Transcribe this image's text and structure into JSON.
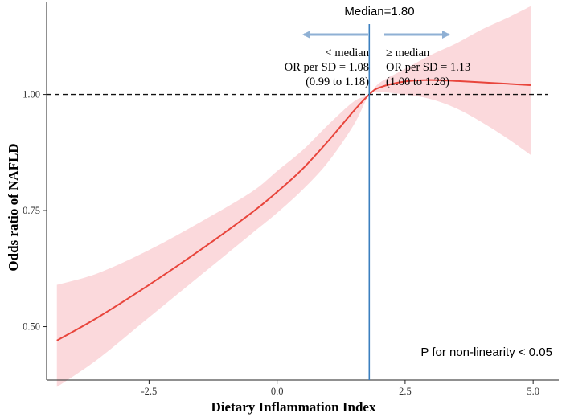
{
  "chart_data": {
    "type": "line",
    "title": "",
    "xlabel": "Dietary Inflammation Index",
    "ylabel": "Odds ratio of  NAFLD",
    "xlim": [
      -4.5,
      5.5
    ],
    "ylim": [
      0.385,
      1.2
    ],
    "x_ticks": [
      -2.5,
      0.0,
      2.5,
      5.0
    ],
    "x_tick_labels": [
      "-2.5",
      "0.0",
      "2.5",
      "5.0"
    ],
    "y_ticks": [
      0.5,
      0.75,
      1.0
    ],
    "y_tick_labels": [
      "0.50",
      "0.75",
      "1.00"
    ],
    "grid": false,
    "reference_line": {
      "y": 1.0,
      "style": "dashed"
    },
    "median_line": {
      "x": 1.8,
      "label": "Median=1.80"
    },
    "series": [
      {
        "name": "Odds ratio",
        "color": "#e8453c",
        "x": [
          -4.3,
          -3.5,
          -2.5,
          -1.5,
          -0.5,
          0.0,
          0.5,
          1.0,
          1.5,
          1.8,
          2.0,
          2.5,
          3.0,
          3.5,
          4.0,
          4.5,
          4.95
        ],
        "values": [
          0.47,
          0.52,
          0.59,
          0.665,
          0.745,
          0.79,
          0.84,
          0.9,
          0.965,
          1.0,
          1.015,
          1.028,
          1.031,
          1.029,
          1.026,
          1.023,
          1.02
        ]
      }
    ],
    "confidence_band": {
      "color": "#fbd7da",
      "x": [
        -4.3,
        -3.5,
        -2.5,
        -1.5,
        -0.5,
        0.0,
        0.5,
        1.0,
        1.5,
        1.8,
        2.0,
        2.5,
        3.0,
        3.5,
        4.0,
        4.5,
        4.95
      ],
      "lower": [
        0.37,
        0.43,
        0.52,
        0.61,
        0.7,
        0.745,
        0.795,
        0.855,
        0.935,
        1.0,
        1.005,
        1.0,
        0.99,
        0.97,
        0.94,
        0.905,
        0.87
      ],
      "upper": [
        0.59,
        0.615,
        0.665,
        0.725,
        0.79,
        0.835,
        0.88,
        0.935,
        0.985,
        1.0,
        1.025,
        1.055,
        1.085,
        1.11,
        1.14,
        1.165,
        1.19
      ]
    },
    "annotations": {
      "left": {
        "line1": "< median",
        "line2": "OR per SD = 1.08",
        "line3": "(0.99 to 1.18)"
      },
      "right": {
        "line1": "≥ median",
        "line2": "OR per SD = 1.13",
        "line3": "(1.00 to 1.28)"
      },
      "p_value": "P for non-linearity < 0.05"
    },
    "arrow_color": "#8fb0d4"
  }
}
